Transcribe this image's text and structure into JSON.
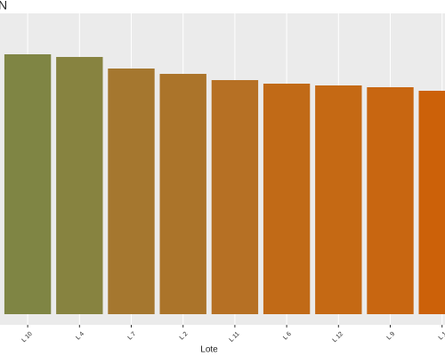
{
  "chart_data": {
    "type": "bar",
    "title": "N",
    "x_label": "Lote",
    "categories": [
      "L 10",
      "L 4",
      "L 7",
      "L 2",
      "L 11",
      "L 6",
      "L 12",
      "L 9",
      "L 1"
    ],
    "values": [
      292,
      289,
      276,
      270,
      263,
      259,
      257,
      255,
      251
    ],
    "colors": [
      "#7f8544",
      "#878340",
      "#a5772f",
      "#ab742a",
      "#b67024",
      "#c16a17",
      "#c56914",
      "#c86611",
      "#cc6109"
    ],
    "ylim": [
      0,
      338
    ]
  }
}
